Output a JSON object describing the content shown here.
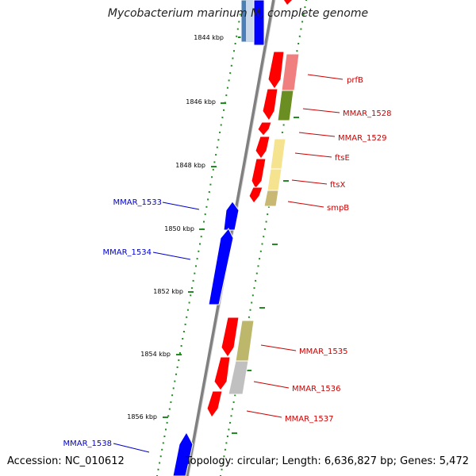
{
  "title": "Mycobacterium marinum M, complete genome",
  "accession": "Accession: NC_010612",
  "topology": "Topology: circular; Length: 6,636,827 bp; Genes: 5,472",
  "colors": {
    "forward": "#ff0000",
    "reverse": "#0000ff",
    "backbone": "#808080",
    "tick": "#228b22",
    "label_forward": "#cc0000",
    "label_reverse": "#0000cc"
  },
  "scale_labels": [
    "1844 kbp",
    "1846 kbp",
    "1848 kbp",
    "1850 kbp",
    "1852 kbp",
    "1854 kbp",
    "1856 kbp"
  ],
  "forward_genes": [
    "prfB",
    "MMAR_1528",
    "MMAR_1529",
    "ftsE",
    "ftsX",
    "smpB",
    "MMAR_1535",
    "MMAR_1536",
    "MMAR_1537"
  ],
  "reverse_genes": [
    "MMAR_1533",
    "MMAR_1534",
    "MMAR_1538"
  ]
}
